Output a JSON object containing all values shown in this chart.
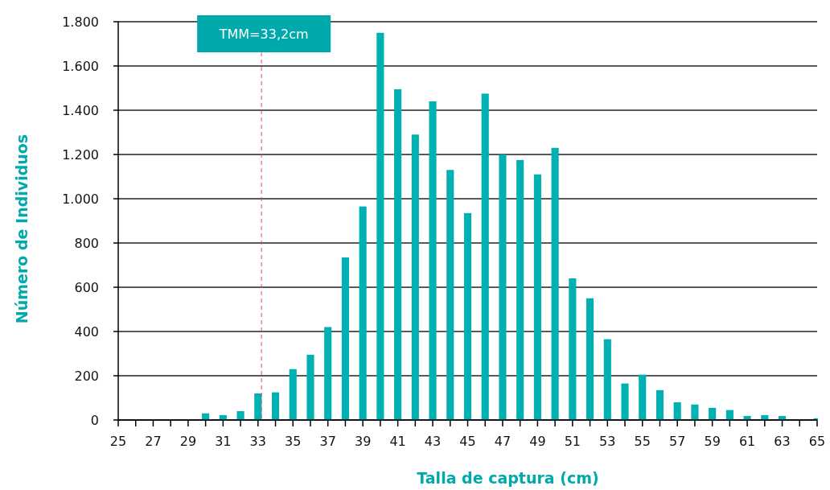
{
  "chart_data": {
    "type": "bar",
    "xlabel": "Talla de captura (cm)",
    "ylabel": "Número de Individuos",
    "x": [
      25,
      26,
      27,
      28,
      29,
      30,
      31,
      32,
      33,
      34,
      35,
      36,
      37,
      38,
      39,
      40,
      41,
      42,
      43,
      44,
      45,
      46,
      47,
      48,
      49,
      50,
      51,
      52,
      53,
      54,
      55,
      56,
      57,
      58,
      59,
      60,
      61,
      62,
      63,
      64,
      65
    ],
    "values": [
      0,
      0,
      0,
      0,
      0,
      30,
      22,
      40,
      120,
      125,
      230,
      295,
      420,
      735,
      965,
      1750,
      1495,
      1290,
      1440,
      1130,
      935,
      1475,
      1200,
      1175,
      1110,
      1230,
      640,
      550,
      365,
      165,
      205,
      135,
      80,
      70,
      55,
      45,
      18,
      22,
      18,
      0,
      8
    ],
    "color": "#00b0b3",
    "xlim": [
      25,
      65
    ],
    "xticks": [
      25,
      {
        "value": 26,
        "label": null
      },
      27,
      {
        "value": 28,
        "label": null
      },
      29,
      {
        "value": 30,
        "label": null
      },
      31,
      {
        "value": 32,
        "label": null
      },
      33,
      {
        "value": 34,
        "label": null
      },
      35,
      {
        "value": 36,
        "label": null
      },
      37,
      {
        "value": 38,
        "label": null
      },
      39,
      {
        "value": 40,
        "label": null
      },
      41,
      {
        "value": 42,
        "label": null
      },
      43,
      {
        "value": 44,
        "label": null
      },
      45,
      {
        "value": 46,
        "label": null
      },
      47,
      {
        "value": 48,
        "label": null
      },
      49,
      {
        "value": 50,
        "label": null
      },
      51,
      {
        "value": 52,
        "label": null
      },
      53,
      {
        "value": 54,
        "label": null
      },
      55,
      {
        "value": 56,
        "label": null
      },
      57,
      {
        "value": 58,
        "label": null
      },
      59,
      {
        "value": 60,
        "label": null
      },
      61,
      {
        "value": 62,
        "label": null
      },
      63,
      {
        "value": 64,
        "label": null
      },
      65
    ],
    "ylim": [
      0,
      1800
    ],
    "yticks": [
      0,
      200,
      400,
      600,
      800,
      {
        "value": 1000,
        "label": "1.000"
      },
      {
        "value": 1200,
        "label": "1.200"
      },
      {
        "value": 1400,
        "label": "1.400"
      },
      {
        "value": 1600,
        "label": "1.600"
      },
      {
        "value": 1800,
        "label": "1.800"
      }
    ],
    "grid": "y",
    "ref_lines": [
      {
        "axis": "x",
        "value": 33.2,
        "label": "TMM=33,2cm",
        "color": "#d9546a",
        "line_style": "dashed"
      }
    ]
  }
}
